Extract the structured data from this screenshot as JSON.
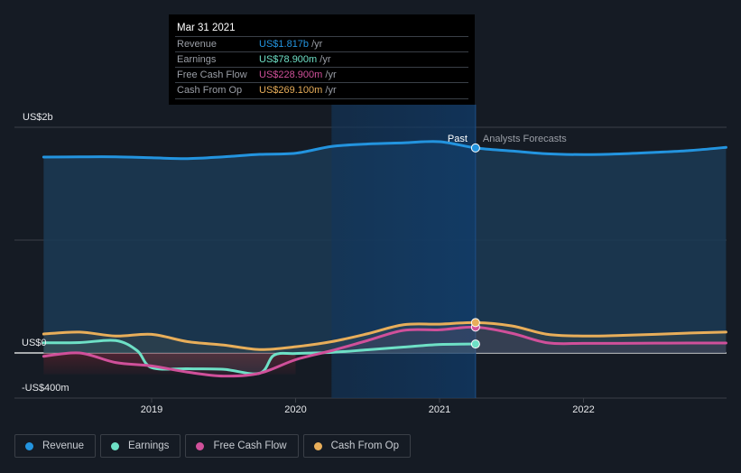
{
  "tooltip": {
    "date": "Mar 31 2021",
    "rows": [
      {
        "label": "Revenue",
        "value": "US$1.817b",
        "unit": "/yr",
        "color": "#2394df"
      },
      {
        "label": "Earnings",
        "value": "US$78.900m",
        "unit": "/yr",
        "color": "#6ee0c6"
      },
      {
        "label": "Free Cash Flow",
        "value": "US$228.900m",
        "unit": "/yr",
        "color": "#d0509a"
      },
      {
        "label": "Cash From Op",
        "value": "US$269.100m",
        "unit": "/yr",
        "color": "#e8ae5a"
      }
    ]
  },
  "legend": [
    {
      "label": "Revenue",
      "color": "#2394df"
    },
    {
      "label": "Earnings",
      "color": "#6ee0c6"
    },
    {
      "label": "Free Cash Flow",
      "color": "#d0509a"
    },
    {
      "label": "Cash From Op",
      "color": "#e8ae5a"
    }
  ],
  "chart_data": {
    "type": "line",
    "title": "",
    "xlabel": "",
    "ylabel": "",
    "units": "US$ millions",
    "xlim": [
      2017.75,
      2023.05
    ],
    "ylim": [
      -400,
      2000
    ],
    "y_ticks": [
      {
        "value": 2000,
        "label": "US$2b"
      },
      {
        "value": 1000,
        "label": ""
      },
      {
        "value": 0,
        "label": "US$0"
      },
      {
        "value": -400,
        "label": "-US$400m"
      }
    ],
    "x_ticks": [
      {
        "value": 2019.0,
        "label": "2019"
      },
      {
        "value": 2020.0,
        "label": "2020"
      },
      {
        "value": 2021.0,
        "label": "2021"
      },
      {
        "value": 2022.0,
        "label": "2022"
      }
    ],
    "annotations": {
      "past_label": "Past",
      "forecast_label": "Analysts Forecasts",
      "divider_x": 2021.25,
      "highlight_range": [
        2020.25,
        2021.25
      ]
    },
    "grid": true,
    "legend_position": "bottom-left",
    "series": [
      {
        "name": "Revenue",
        "color": "#2394df",
        "x": [
          2018.25,
          2018.5,
          2018.75,
          2019.0,
          2019.25,
          2019.5,
          2019.75,
          2020.0,
          2020.25,
          2020.5,
          2020.75,
          2021.0,
          2021.25,
          2021.5,
          2021.75,
          2022.0,
          2022.25,
          2022.5,
          2022.75,
          2022.99
        ],
        "y": [
          1736,
          1738,
          1738,
          1730,
          1722,
          1738,
          1760,
          1770,
          1830,
          1852,
          1862,
          1872,
          1817,
          1790,
          1765,
          1758,
          1764,
          1778,
          1795,
          1822
        ]
      },
      {
        "name": "Earnings",
        "color": "#6ee0c6",
        "x": [
          2018.25,
          2018.5,
          2018.75,
          2018.9,
          2019.0,
          2019.25,
          2019.5,
          2019.75,
          2019.85,
          2020.0,
          2020.25,
          2020.5,
          2020.75,
          2021.0,
          2021.25
        ],
        "y": [
          90,
          92,
          110,
          20,
          -130,
          -140,
          -145,
          -180,
          -20,
          -5,
          5,
          28,
          52,
          75,
          79
        ]
      },
      {
        "name": "Free Cash Flow",
        "color": "#d0509a",
        "x": [
          2018.25,
          2018.5,
          2018.75,
          2019.0,
          2019.25,
          2019.5,
          2019.75,
          2020.0,
          2020.25,
          2020.5,
          2020.75,
          2021.0,
          2021.25,
          2021.5,
          2021.75,
          2022.0,
          2022.25,
          2022.5,
          2022.75,
          2022.99
        ],
        "y": [
          -30,
          0,
          -85,
          -115,
          -170,
          -205,
          -180,
          -60,
          20,
          110,
          200,
          205,
          229,
          175,
          90,
          85,
          85,
          87,
          88,
          88
        ]
      },
      {
        "name": "Cash From Op",
        "color": "#e8ae5a",
        "x": [
          2018.25,
          2018.5,
          2018.75,
          2019.0,
          2019.25,
          2019.5,
          2019.75,
          2020.0,
          2020.25,
          2020.5,
          2020.75,
          2021.0,
          2021.25,
          2021.5,
          2021.75,
          2022.0,
          2022.25,
          2022.5,
          2022.75,
          2022.99
        ],
        "y": [
          168,
          185,
          150,
          165,
          100,
          70,
          30,
          55,
          100,
          170,
          250,
          255,
          269,
          240,
          165,
          150,
          155,
          165,
          177,
          185
        ]
      }
    ]
  }
}
